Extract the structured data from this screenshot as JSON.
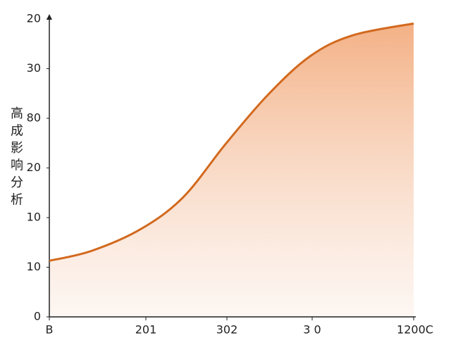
{
  "chart_data": {
    "type": "area",
    "ylabel": "高成影响分析",
    "x": [
      0,
      60,
      130,
      190,
      250,
      310,
      370,
      430,
      517
    ],
    "values": [
      1.13,
      1.33,
      1.77,
      2.41,
      3.48,
      4.47,
      5.25,
      5.67,
      5.91
    ],
    "color": "#d2691e",
    "xlim": [
      0,
      517
    ],
    "ylim": [
      0,
      6
    ],
    "xticks": [
      {
        "value": 0,
        "label": "B"
      },
      {
        "value": 137,
        "label": "201"
      },
      {
        "value": 252,
        "label": "302"
      },
      {
        "value": 373,
        "label": "3 0"
      },
      {
        "value": 517,
        "label": "1200C"
      }
    ],
    "yticks": [
      {
        "value": 0,
        "label": "0"
      },
      {
        "value": 1,
        "label": "10"
      },
      {
        "value": 2,
        "label": "10"
      },
      {
        "value": 3,
        "label": "20"
      },
      {
        "value": 4,
        "label": "80"
      },
      {
        "value": 5,
        "label": "30"
      },
      {
        "value": 6,
        "label": "20"
      }
    ],
    "grid": false
  }
}
